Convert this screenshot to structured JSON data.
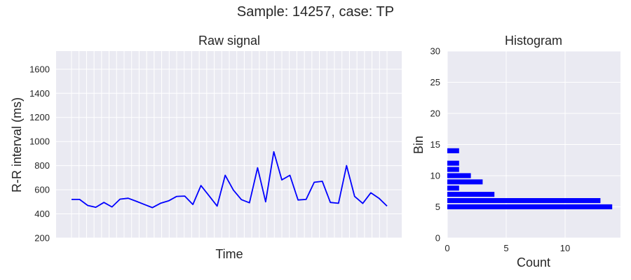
{
  "figure_title": "Sample: 14257, case: TP",
  "chart_data": [
    {
      "type": "line",
      "title": "Raw signal",
      "xlabel": "Time",
      "ylabel": "R-R interval (ms)",
      "ylim": [
        200,
        1750
      ],
      "yticks": [
        200,
        400,
        600,
        800,
        1000,
        1200,
        1400,
        1600
      ],
      "x_tick_count": 43,
      "grid": true,
      "series": [
        {
          "color": "#0000ff",
          "values": [
            520,
            520,
            470,
            455,
            495,
            458,
            522,
            530,
            505,
            478,
            452,
            488,
            508,
            545,
            548,
            478,
            635,
            550,
            465,
            720,
            598,
            518,
            492,
            782,
            500,
            915,
            682,
            720,
            515,
            520,
            662,
            670,
            495,
            488,
            800,
            545,
            487,
            575,
            530,
            465
          ]
        }
      ]
    },
    {
      "type": "bar",
      "orientation": "horizontal",
      "title": "Histogram",
      "xlabel": "Count",
      "ylabel": "Bin",
      "xlim": [
        0,
        14.7
      ],
      "ylim": [
        0,
        30
      ],
      "xticks": [
        0,
        5,
        10
      ],
      "yticks": [
        0,
        5,
        10,
        15,
        20,
        25,
        30
      ],
      "grid": true,
      "color": "#0000ff",
      "bins": [
        5,
        6,
        7,
        8,
        9,
        10,
        11,
        12,
        14
      ],
      "counts": [
        14,
        13,
        4,
        1,
        3,
        2,
        1,
        1,
        1
      ]
    }
  ]
}
